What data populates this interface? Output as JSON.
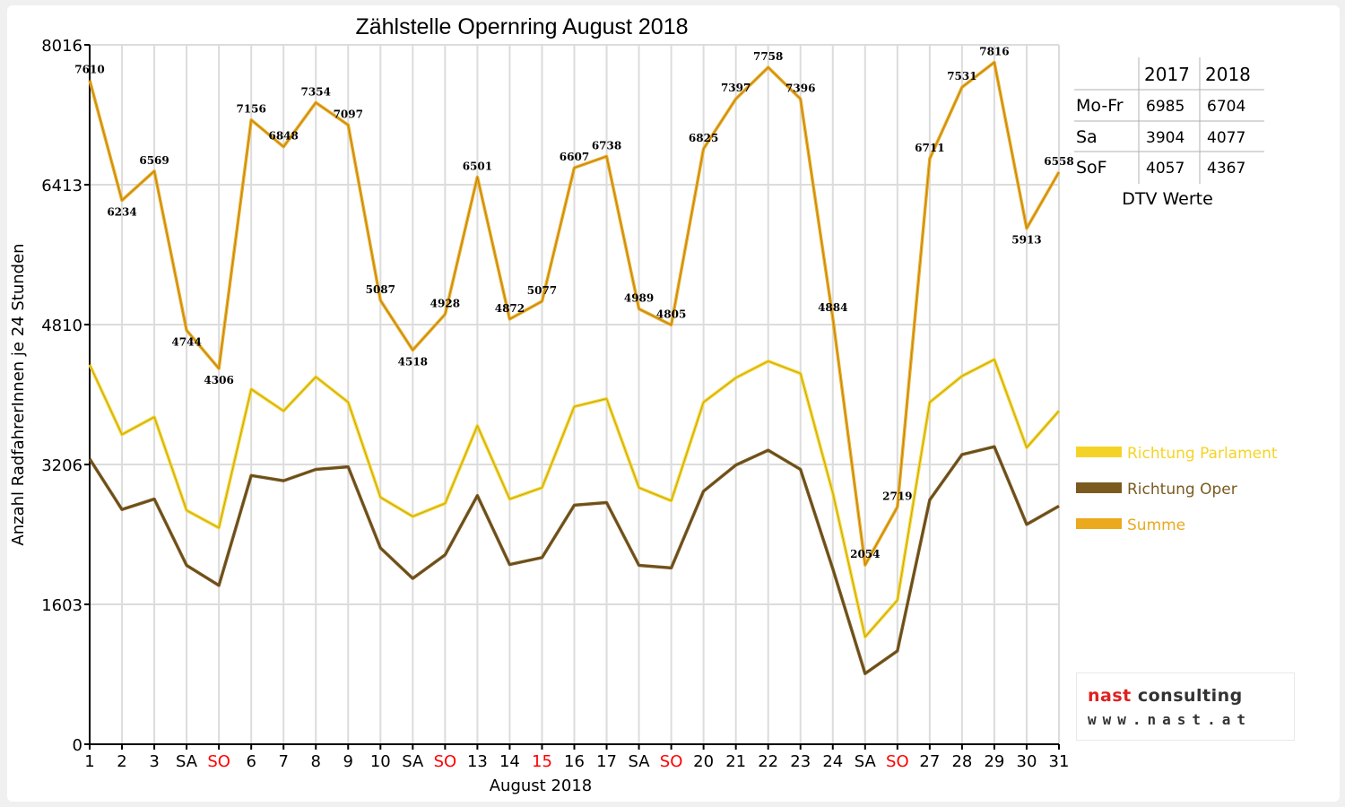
{
  "chart_data": {
    "type": "line",
    "title": "Zählstelle Opernring August 2018",
    "xlabel": "August 2018",
    "ylabel": "Anzahl RadfahrerInnen je 24 Stunden",
    "ylim": [
      0,
      8016
    ],
    "yticks": [
      "0",
      "1603",
      "3206",
      "4810",
      "6413",
      "8016"
    ],
    "grid": true,
    "legend_position": "right",
    "categories": [
      "1",
      "2",
      "3",
      "SA",
      "SO",
      "6",
      "7",
      "8",
      "9",
      "10",
      "SA",
      "SO",
      "13",
      "14",
      "15",
      "16",
      "17",
      "SA",
      "SO",
      "20",
      "21",
      "22",
      "23",
      "24",
      "SA",
      "SO",
      "27",
      "28",
      "29",
      "30",
      "31"
    ],
    "category_colors": [
      "#000000",
      "#000000",
      "#000000",
      "#000000",
      "#ff0000",
      "#000000",
      "#000000",
      "#000000",
      "#000000",
      "#000000",
      "#000000",
      "#ff0000",
      "#000000",
      "#000000",
      "#ff0000",
      "#000000",
      "#000000",
      "#000000",
      "#ff0000",
      "#000000",
      "#000000",
      "#000000",
      "#000000",
      "#000000",
      "#000000",
      "#ff0000",
      "#000000",
      "#000000",
      "#000000",
      "#000000",
      "#000000"
    ],
    "series": [
      {
        "name": "Richtung Parlament",
        "color": "#f5d326",
        "values": [
          4350,
          3550,
          3750,
          2680,
          2480,
          4070,
          3820,
          4210,
          3920,
          2830,
          2610,
          2760,
          3650,
          2810,
          2940,
          3870,
          3960,
          2940,
          2790,
          3920,
          4200,
          4390,
          4250,
          2880,
          1230,
          1650,
          3920,
          4220,
          4410,
          3400,
          3820
        ]
      },
      {
        "name": "Richtung Oper",
        "color": "#7b5a20",
        "values": [
          3270,
          2690,
          2810,
          2050,
          1820,
          3080,
          3020,
          3150,
          3180,
          2250,
          1900,
          2170,
          2850,
          2060,
          2140,
          2740,
          2770,
          2050,
          2020,
          2900,
          3200,
          3370,
          3150,
          2010,
          810,
          1070,
          2800,
          3320,
          3410,
          2520,
          2730
        ]
      },
      {
        "name": "Summe",
        "color": "#eba91e",
        "values": [
          7610,
          6234,
          6569,
          4744,
          4306,
          7156,
          6848,
          7354,
          7097,
          5087,
          4518,
          4928,
          6501,
          4872,
          5077,
          6607,
          6738,
          4989,
          4805,
          6825,
          7397,
          7758,
          7396,
          4884,
          2054,
          2719,
          6711,
          7531,
          7816,
          5913,
          6558
        ]
      }
    ],
    "data_labels": [
      "7610",
      "6234",
      "6569",
      "4744",
      "4306",
      "7156",
      "6848",
      "7354",
      "7097",
      "5087",
      "4518",
      "4928",
      "6501",
      "4872",
      "5077",
      "6607",
      "6738",
      "4989",
      "4805",
      "6825",
      "7397",
      "7758",
      "7396",
      "4884",
      "2054",
      "2719",
      "6711",
      "7531",
      "7816",
      "5913",
      "6558"
    ]
  },
  "dtv_table": {
    "headers": [
      "",
      "2017",
      "2018"
    ],
    "rows": [
      [
        "Mo-Fr",
        "6985",
        "6704"
      ],
      [
        "Sa",
        "3904",
        "4077"
      ],
      [
        "SoF",
        "4057",
        "4367"
      ]
    ],
    "caption": "DTV Werte"
  },
  "logo": {
    "word1": "nast",
    "word2": " consulting",
    "url_text": "www.nast.at"
  }
}
